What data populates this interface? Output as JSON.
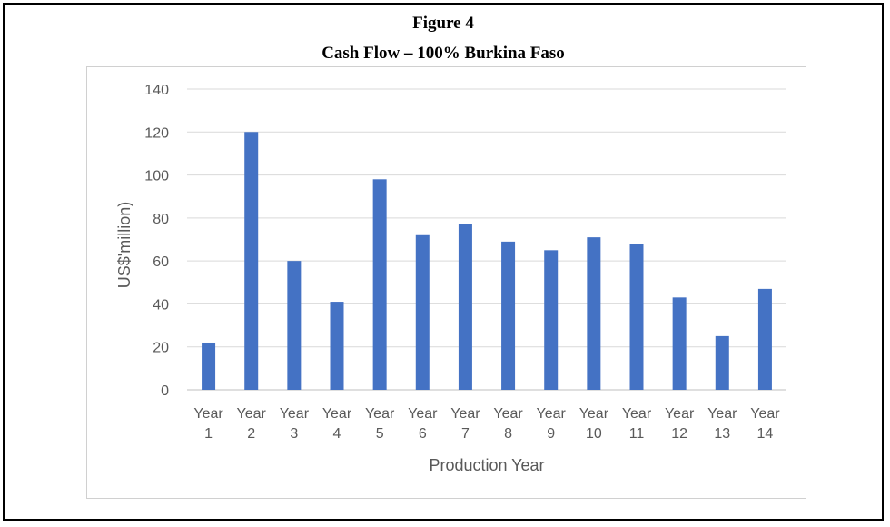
{
  "figure": {
    "number": "Figure 4",
    "caption": "Cash Flow – 100% Burkina Faso"
  },
  "colors": {
    "bar": "#4472c4",
    "grid": "#d9d9d9",
    "text": "#595959"
  },
  "chart_data": {
    "type": "bar",
    "title": "Cash Flow – 100% Burkina Faso",
    "xlabel": "Production Year",
    "ylabel": "US$'million)",
    "categories": [
      [
        "Year",
        "1"
      ],
      [
        "Year",
        "2"
      ],
      [
        "Year",
        "3"
      ],
      [
        "Year",
        "4"
      ],
      [
        "Year",
        "5"
      ],
      [
        "Year",
        "6"
      ],
      [
        "Year",
        "7"
      ],
      [
        "Year",
        "8"
      ],
      [
        "Year",
        "9"
      ],
      [
        "Year",
        "10"
      ],
      [
        "Year",
        "11"
      ],
      [
        "Year",
        "12"
      ],
      [
        "Year",
        "13"
      ],
      [
        "Year",
        "14"
      ]
    ],
    "values": [
      22,
      120,
      60,
      41,
      98,
      72,
      77,
      69,
      65,
      71,
      68,
      43,
      25,
      47
    ],
    "ylim": [
      0,
      140
    ],
    "yticks": [
      0,
      20,
      40,
      60,
      80,
      100,
      120,
      140
    ],
    "grid": true,
    "legend": "none"
  }
}
